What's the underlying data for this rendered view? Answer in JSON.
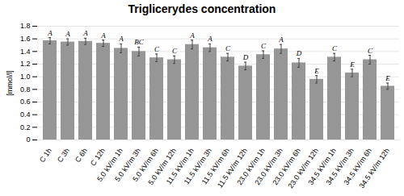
{
  "chart_data": {
    "type": "bar",
    "title": "Triglicerydes concentration",
    "ylabel": "[mmol/l]",
    "categories": [
      "C 1h",
      "C 3h",
      "C 6h",
      "C 12h",
      "5.0 kV/m 1h",
      "5.0 kV/m 3h",
      "5.0 kV/m 6h",
      "5.0 kV/m 12h",
      "11.5 kV/m 1h",
      "11.5 kV/m 3h",
      "11.5 kV/m 6h",
      "11.5 kV/m 12h",
      "23.0 kV/m 1h",
      "23.0 kV/m 3h",
      "23.0 kV/m 6h",
      "23.0 kV/m 12h",
      "34.5 kV/m 1h",
      "34.5 kV/m 3h",
      "34.5 kV/m 6h",
      "34.5 kV/m 12h"
    ],
    "values": [
      1.57,
      1.55,
      1.56,
      1.53,
      1.45,
      1.4,
      1.3,
      1.27,
      1.51,
      1.46,
      1.31,
      1.17,
      1.35,
      1.44,
      1.22,
      0.96,
      1.31,
      1.06,
      1.27,
      0.85
    ],
    "errors": [
      0.05,
      0.05,
      0.05,
      0.05,
      0.07,
      0.07,
      0.06,
      0.06,
      0.07,
      0.06,
      0.06,
      0.06,
      0.06,
      0.07,
      0.07,
      0.06,
      0.06,
      0.06,
      0.07,
      0.05
    ],
    "annotations": [
      "A",
      "A",
      "A",
      "A",
      "A",
      "BC",
      "C",
      "C",
      "A",
      "A",
      "C",
      "D",
      "C",
      "A",
      "D",
      "E",
      "C",
      "E",
      "C",
      "E"
    ],
    "color": "#969696",
    "ylim": [
      0,
      1.8
    ],
    "yticks": [
      0,
      0.2,
      0.4,
      0.6,
      0.8,
      {
        "value": 1.0,
        "label": "1.0"
      },
      1.2,
      1.4,
      1.6,
      1.8
    ],
    "grid": true
  }
}
